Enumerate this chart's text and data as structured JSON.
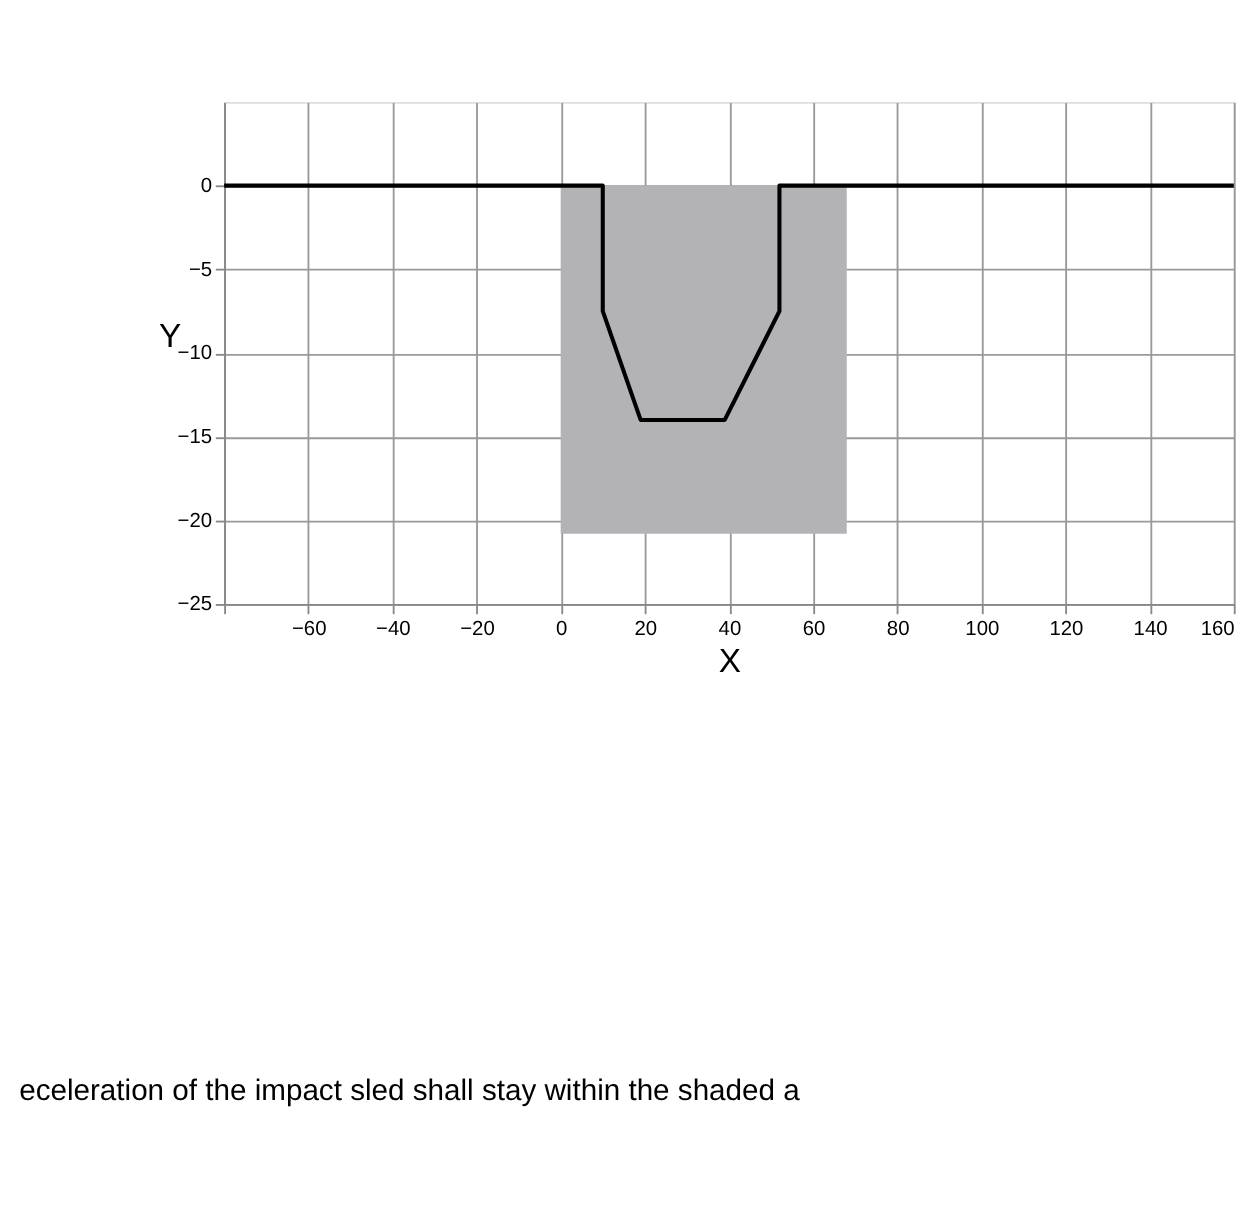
{
  "chart_data": {
    "type": "line",
    "xlabel": "X",
    "ylabel": "Y",
    "series": [
      {
        "type": "area",
        "color": "#b3b3b6",
        "x": [
          0,
          68
        ],
        "values": [
          -20.8,
          -20.8
        ]
      },
      {
        "color": "#000000",
        "x": [
          -80,
          10,
          10,
          19,
          39,
          52,
          52,
          160
        ],
        "values": [
          0,
          0,
          -7.5,
          -14,
          -14,
          -7.5,
          0,
          0
        ]
      }
    ],
    "xlim": [
      -80,
      160
    ],
    "xticks": [
      {
        "value": -80,
        "label": null
      },
      -60,
      -40,
      -20,
      0,
      20,
      40,
      60,
      80,
      100,
      120,
      140,
      160
    ],
    "ylim": [
      -25,
      5
    ],
    "yticks": [
      -25,
      -20,
      -15,
      -10,
      -5,
      0
    ],
    "grid": true,
    "marker": "none",
    "line_style": "solid",
    "annotations": [
      "eceleration of the impact sled shall stay within the shaded a"
    ]
  }
}
